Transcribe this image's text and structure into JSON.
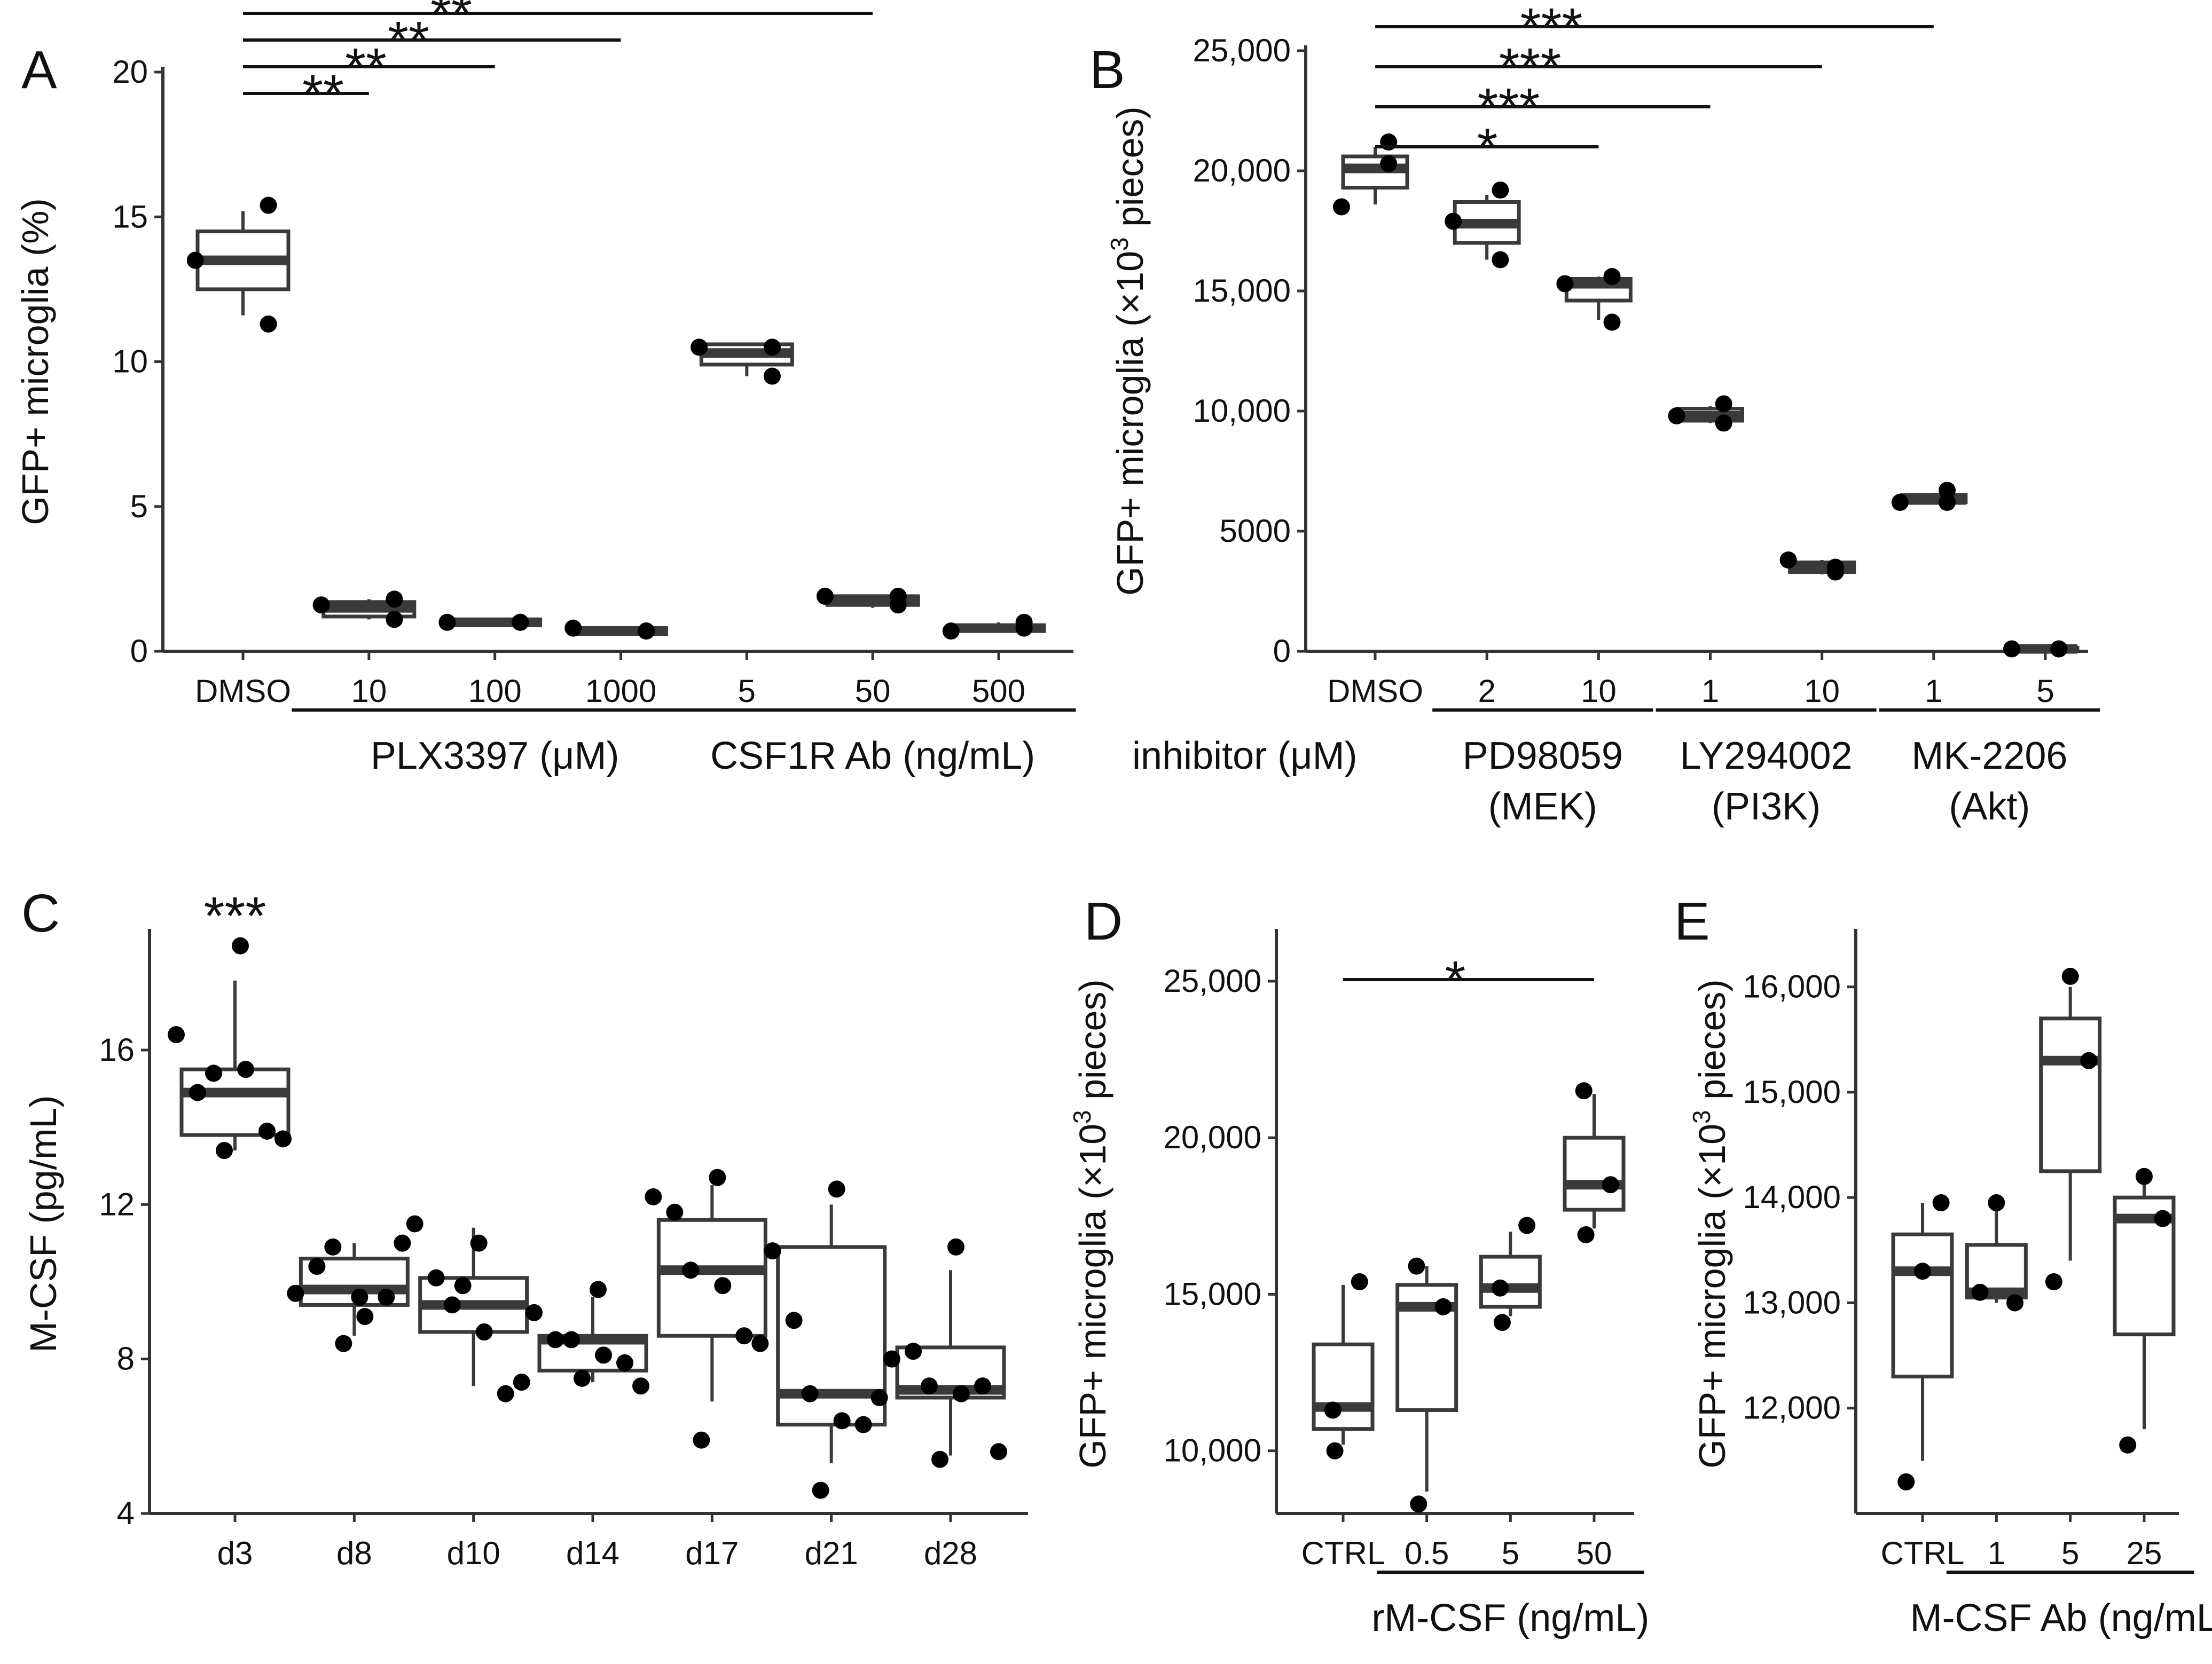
{
  "chart_data": [
    {
      "panel": "A",
      "type": "box",
      "ylabel": "GFP+ microglia (%)",
      "ylim": [
        0,
        20
      ],
      "yticks": [
        0,
        5,
        10,
        15,
        20
      ],
      "categories": [
        "DMSO",
        "10",
        "100",
        "1000",
        "5",
        "50",
        "500"
      ],
      "groups": [
        {
          "label": "PLX3397 (μM)",
          "from": 1,
          "to": 3
        },
        {
          "label": "CSF1R Ab (ng/mL)",
          "from": 4,
          "to": 6
        }
      ],
      "boxes": [
        {
          "q1": 12.5,
          "med": 13.5,
          "q3": 14.5,
          "lo": 11.6,
          "hi": 15.2
        },
        {
          "q1": 1.2,
          "med": 1.5,
          "q3": 1.7,
          "lo": 1.1,
          "hi": 1.8
        },
        {
          "q1": 0.9,
          "med": 1.0,
          "q3": 1.1,
          "lo": 0.9,
          "hi": 1.1
        },
        {
          "q1": 0.6,
          "med": 0.7,
          "q3": 0.8,
          "lo": 0.6,
          "hi": 0.8
        },
        {
          "q1": 9.9,
          "med": 10.3,
          "q3": 10.6,
          "lo": 9.5,
          "hi": 10.6
        },
        {
          "q1": 1.6,
          "med": 1.8,
          "q3": 1.9,
          "lo": 1.5,
          "hi": 1.9
        },
        {
          "q1": 0.7,
          "med": 0.8,
          "q3": 0.9,
          "lo": 0.7,
          "hi": 1.0
        }
      ],
      "points": [
        [
          13.5,
          15.4,
          11.3
        ],
        [
          1.6,
          1.8,
          1.1
        ],
        [
          1.0,
          1.0,
          1.0
        ],
        [
          0.8,
          0.7,
          0.7
        ],
        [
          10.5,
          10.5,
          9.5
        ],
        [
          1.9,
          1.9,
          1.6
        ],
        [
          0.7,
          1.0,
          0.8
        ]
      ],
      "sig": [
        {
          "to": 1,
          "label": "**"
        },
        {
          "to": 2,
          "label": "**"
        },
        {
          "to": 3,
          "label": "**"
        },
        {
          "to": 5,
          "label": "**"
        },
        {
          "to": 6,
          "label": "**"
        }
      ]
    },
    {
      "panel": "B",
      "type": "box",
      "ylabel_main": "GFP+ microglia (×10",
      "ylabel_sup": "3",
      "ylabel_tail": " pieces)",
      "ylim": [
        0,
        25000
      ],
      "yticks": [
        0,
        5000,
        10000,
        15000,
        20000,
        25000
      ],
      "ytick_labels": [
        "0",
        "5000",
        "10,000",
        "15,000",
        "20,000",
        "25,000"
      ],
      "categories": [
        "DMSO",
        "2",
        "10",
        "1",
        "10",
        "1",
        "5"
      ],
      "prefix_label": "inhibitor (μM)",
      "groups": [
        {
          "label": "PD98059",
          "label2": "(MEK)",
          "from": 1,
          "to": 2
        },
        {
          "label": "LY294002",
          "label2": "(PI3K)",
          "from": 3,
          "to": 4
        },
        {
          "label": "MK-2206",
          "label2": "(Akt)",
          "from": 5,
          "to": 6
        }
      ],
      "boxes": [
        {
          "q1": 19300,
          "med": 20100,
          "q3": 20600,
          "lo": 18600,
          "hi": 21000
        },
        {
          "q1": 17000,
          "med": 17800,
          "q3": 18700,
          "lo": 16300,
          "hi": 19000
        },
        {
          "q1": 14600,
          "med": 15300,
          "q3": 15500,
          "lo": 13800,
          "hi": 15600
        },
        {
          "q1": 9600,
          "med": 9800,
          "q3": 10100,
          "lo": 9500,
          "hi": 10200
        },
        {
          "q1": 3300,
          "med": 3500,
          "q3": 3700,
          "lo": 3200,
          "hi": 3800
        },
        {
          "q1": 6200,
          "med": 6300,
          "q3": 6500,
          "lo": 6100,
          "hi": 6600
        },
        {
          "q1": 50,
          "med": 100,
          "q3": 150,
          "lo": 0,
          "hi": 200
        }
      ],
      "points": [
        [
          18500,
          21200,
          20300
        ],
        [
          17900,
          19200,
          16300
        ],
        [
          15300,
          15600,
          13700
        ],
        [
          9800,
          10300,
          9500
        ],
        [
          3800,
          3300,
          3500
        ],
        [
          6200,
          6200,
          6700
        ],
        [
          100,
          100,
          100
        ]
      ],
      "sig": [
        {
          "to": 2,
          "label": "*"
        },
        {
          "to": 3,
          "label": "***"
        },
        {
          "to": 4,
          "label": "***"
        },
        {
          "to": 5,
          "label": "***"
        },
        {
          "to": 6,
          "label": "***"
        }
      ]
    },
    {
      "panel": "C",
      "type": "box",
      "ylabel": "M-CSF (pg/mL)",
      "ylim": [
        4,
        19
      ],
      "yticks": [
        4,
        8,
        12,
        16
      ],
      "categories": [
        "d3",
        "d8",
        "d10",
        "d14",
        "d17",
        "d21",
        "d28"
      ],
      "boxes": [
        {
          "q1": 13.8,
          "med": 14.9,
          "q3": 15.5,
          "lo": 13.4,
          "hi": 17.8
        },
        {
          "q1": 9.4,
          "med": 9.8,
          "q3": 10.6,
          "lo": 8.6,
          "hi": 11.0
        },
        {
          "q1": 8.7,
          "med": 9.4,
          "q3": 10.1,
          "lo": 7.3,
          "hi": 11.4
        },
        {
          "q1": 7.7,
          "med": 8.5,
          "q3": 8.6,
          "lo": 7.4,
          "hi": 9.6
        },
        {
          "q1": 8.6,
          "med": 10.3,
          "q3": 11.6,
          "lo": 6.9,
          "hi": 12.5
        },
        {
          "q1": 6.3,
          "med": 7.1,
          "q3": 10.9,
          "lo": 5.3,
          "hi": 12.0
        },
        {
          "q1": 7.0,
          "med": 7.2,
          "q3": 8.3,
          "lo": 5.5,
          "hi": 10.3
        }
      ],
      "points": [
        [
          16.4,
          14.9,
          15.4,
          15.5,
          13.9,
          13.7,
          13.4,
          18.7
        ],
        [
          9.7,
          10.4,
          10.9,
          9.1,
          9.6,
          11.0,
          8.4,
          9.6
        ],
        [
          11.5,
          10.1,
          9.4,
          8.7,
          7.1,
          7.4,
          9.9,
          11.0
        ],
        [
          9.2,
          8.5,
          8.5,
          8.1,
          7.9,
          7.3,
          7.5,
          9.8
        ],
        [
          12.2,
          11.8,
          10.3,
          9.9,
          8.6,
          8.4,
          5.9,
          12.7
        ],
        [
          10.8,
          9.0,
          7.1,
          6.4,
          6.3,
          7.0,
          4.6,
          12.4
        ],
        [
          8.0,
          8.2,
          7.3,
          7.1,
          7.3,
          5.6,
          5.4,
          10.9
        ]
      ],
      "sig": [
        {
          "at": 0,
          "label": "***"
        }
      ]
    },
    {
      "panel": "D",
      "type": "box",
      "ylabel_main": "GFP+ microglia (×10",
      "ylabel_sup": "3",
      "ylabel_tail": " pieces)",
      "ylim": [
        8000,
        26500
      ],
      "yticks": [
        10000,
        15000,
        20000,
        25000
      ],
      "ytick_labels": [
        "10,000",
        "15,000",
        "20,000",
        "25,000"
      ],
      "categories": [
        "CTRL",
        "0.5",
        "5",
        "50"
      ],
      "groups": [
        {
          "label": "rM-CSF (ng/mL)",
          "from": 1,
          "to": 3
        }
      ],
      "boxes": [
        {
          "q1": 10700,
          "med": 11400,
          "q3": 13400,
          "lo": 10200,
          "hi": 15300
        },
        {
          "q1": 11300,
          "med": 14600,
          "q3": 15300,
          "lo": 8700,
          "hi": 15900
        },
        {
          "q1": 14600,
          "med": 15200,
          "q3": 16200,
          "lo": 14300,
          "hi": 17000
        },
        {
          "q1": 17700,
          "med": 18500,
          "q3": 20000,
          "lo": 17100,
          "hi": 21400
        }
      ],
      "points": [
        [
          15400,
          11300,
          10000
        ],
        [
          14600,
          15900,
          8300
        ],
        [
          17200,
          15200,
          14100
        ],
        [
          18500,
          21500,
          16900
        ]
      ],
      "sig": [
        {
          "to": 3,
          "label": "*"
        }
      ]
    },
    {
      "panel": "E",
      "type": "box",
      "ylabel_main": "GFP+ microglia (×10",
      "ylabel_sup": "3",
      "ylabel_tail": " pieces)",
      "ylim": [
        11000,
        16500
      ],
      "yticks": [
        12000,
        13000,
        14000,
        15000,
        16000
      ],
      "ytick_labels": [
        "12,000",
        "13,000",
        "14,000",
        "15,000",
        "16,000"
      ],
      "categories": [
        "CTRL",
        "1",
        "5",
        "25"
      ],
      "groups": [
        {
          "label": "M-CSF Ab (ng/mL)",
          "from": 1,
          "to": 3
        }
      ],
      "boxes": [
        {
          "q1": 12300,
          "med": 13300,
          "q3": 13650,
          "lo": 11500,
          "hi": 13950
        },
        {
          "q1": 13050,
          "med": 13100,
          "q3": 13550,
          "lo": 13000,
          "hi": 13900
        },
        {
          "q1": 14250,
          "med": 15300,
          "q3": 15700,
          "lo": 13400,
          "hi": 16000
        },
        {
          "q1": 12700,
          "med": 13800,
          "q3": 14000,
          "lo": 11800,
          "hi": 14150
        }
      ],
      "points": [
        [
          13300,
          13950,
          11300
        ],
        [
          13950,
          13000,
          13100
        ],
        [
          16100,
          15300,
          13200
        ],
        [
          14200,
          13800,
          11650
        ]
      ]
    }
  ],
  "panel_labels": [
    "A",
    "B",
    "C",
    "D",
    "E"
  ]
}
